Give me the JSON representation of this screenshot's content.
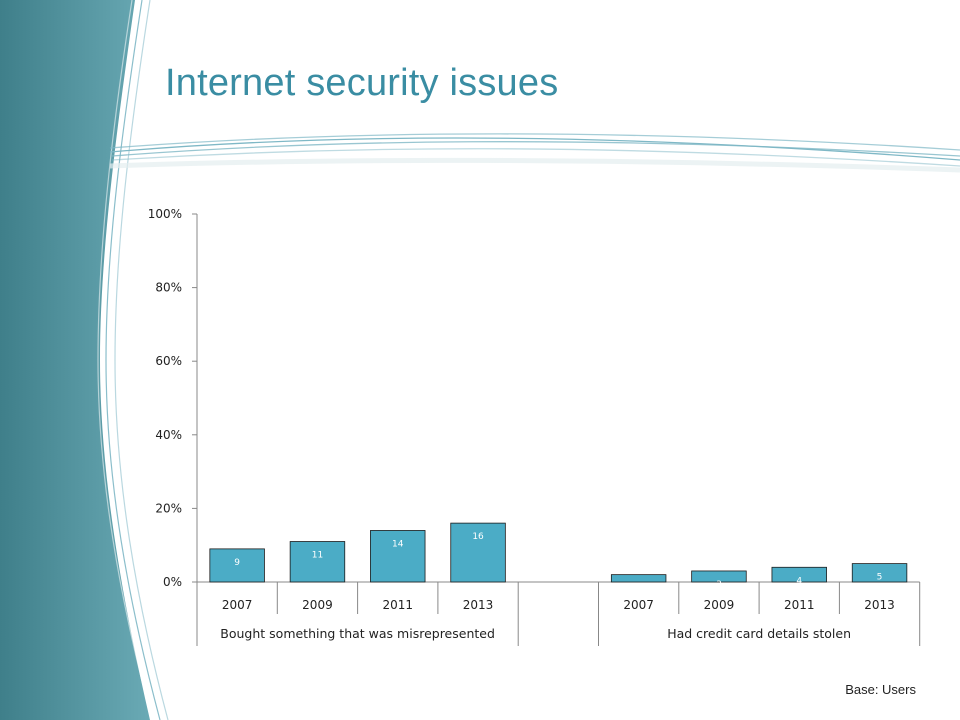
{
  "slide": {
    "title": "Internet security issues",
    "footnote": "Base: Users"
  },
  "colors": {
    "title": "#3a8da3",
    "bar_fill": "#4bacc6",
    "bar_stroke": "#1b1b1b",
    "side_band": "#4a8893",
    "swoosh": "#7fb8c6"
  },
  "chart_data": {
    "type": "bar",
    "ylim": [
      0,
      100
    ],
    "yticks": [
      0,
      20,
      40,
      60,
      80,
      100
    ],
    "ytick_labels": [
      "0%",
      "20%",
      "40%",
      "60%",
      "80%",
      "100%"
    ],
    "grid": false,
    "legend": "none",
    "groups": [
      {
        "name": "Bought something that was misrepresented",
        "categories": [
          "2007",
          "2009",
          "2011",
          "2013"
        ],
        "values": [
          9,
          11,
          14,
          16
        ]
      },
      {
        "name": "Had credit card details stolen",
        "categories": [
          "2007",
          "2009",
          "2011",
          "2013"
        ],
        "values": [
          2,
          3,
          4,
          5
        ]
      }
    ]
  }
}
